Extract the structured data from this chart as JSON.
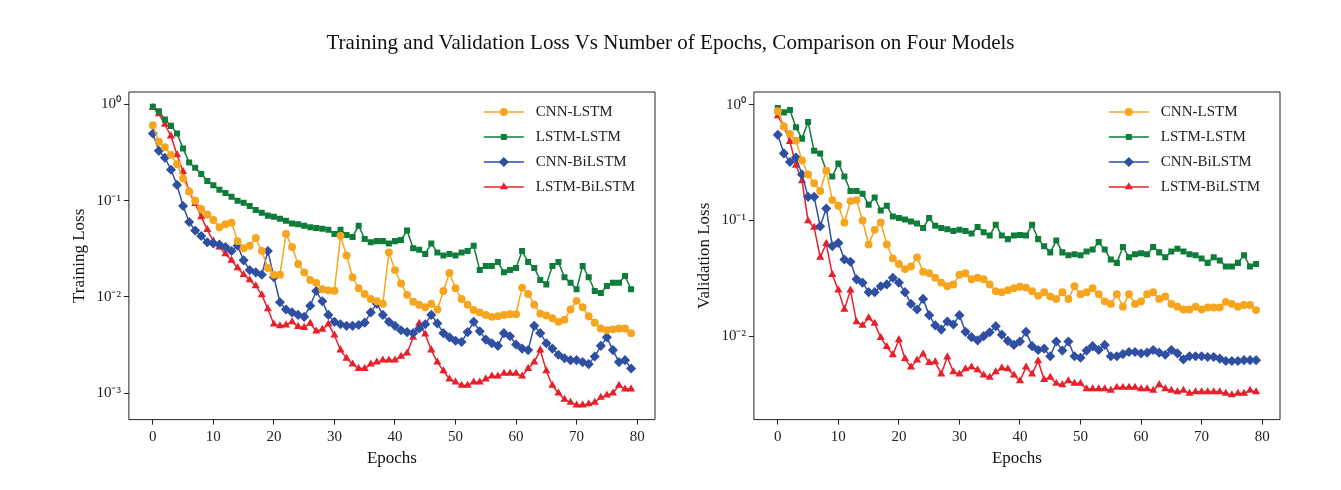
{
  "chart_data": [
    {
      "type": "line",
      "title": "Training and Validation Loss  Vs Number of Epochs, Comparison on Four Models",
      "xlabel": "Epochs",
      "ylabel": "Training Loss",
      "log": "y",
      "grid": false,
      "legend": "top right",
      "x": [
        0,
        1,
        2,
        3,
        4,
        5,
        6,
        7,
        8,
        9,
        10,
        11,
        12,
        13,
        14,
        15,
        16,
        17,
        18,
        19,
        20,
        21,
        22,
        23,
        24,
        25,
        26,
        27,
        28,
        29,
        30,
        31,
        32,
        33,
        34,
        35,
        36,
        37,
        38,
        39,
        40,
        41,
        42,
        43,
        44,
        45,
        46,
        47,
        48,
        49,
        50,
        51,
        52,
        53,
        54,
        55,
        56,
        57,
        58,
        59,
        60,
        61,
        62,
        63,
        64,
        65,
        66,
        67,
        68,
        69,
        70,
        71,
        72,
        73,
        74,
        75,
        76,
        77,
        78,
        79
      ],
      "xlim": [
        -3.95,
        82.95
      ],
      "xticks": [
        0,
        10,
        20,
        30,
        40,
        50,
        60,
        70,
        80
      ],
      "ylim": [
        0.00053,
        1.35
      ],
      "yticks": [
        {
          "value": 0.001,
          "label": "10⁻³"
        },
        {
          "value": 0.01,
          "label": "10⁻²"
        },
        {
          "value": 0.1,
          "label": "10⁻¹"
        },
        {
          "value": 1,
          "label": "10⁰"
        }
      ],
      "series": [
        {
          "name": "CNN-LSTM",
          "color": "#f7a51e",
          "marker": "circle",
          "values": [
            0.61,
            0.41,
            0.36,
            0.3,
            0.24,
            0.17,
            0.125,
            0.1,
            0.082,
            0.072,
            0.063,
            0.053,
            0.057,
            0.059,
            0.038,
            0.032,
            0.034,
            0.041,
            0.03,
            0.02,
            0.017,
            0.017,
            0.045,
            0.033,
            0.022,
            0.018,
            0.015,
            0.014,
            0.012,
            0.0117,
            0.0116,
            0.043,
            0.027,
            0.016,
            0.0123,
            0.0107,
            0.0095,
            0.009,
            0.0085,
            0.029,
            0.019,
            0.0138,
            0.0105,
            0.0089,
            0.0083,
            0.0078,
            0.0085,
            0.0074,
            0.0115,
            0.0177,
            0.0123,
            0.0095,
            0.0083,
            0.0073,
            0.0069,
            0.0065,
            0.0062,
            0.0063,
            0.0065,
            0.0066,
            0.0066,
            0.0125,
            0.0107,
            0.0083,
            0.0067,
            0.0064,
            0.006,
            0.0055,
            0.0058,
            0.0074,
            0.0091,
            0.0078,
            0.0063,
            0.0054,
            0.0047,
            0.0045,
            0.0046,
            0.0047,
            0.0047,
            0.0042
          ]
        },
        {
          "name": "LSTM-LSTM",
          "color": "#0e7d3a",
          "marker": "square",
          "values": [
            0.95,
            0.85,
            0.7,
            0.6,
            0.5,
            0.35,
            0.25,
            0.22,
            0.19,
            0.16,
            0.145,
            0.13,
            0.12,
            0.11,
            0.1,
            0.095,
            0.088,
            0.08,
            0.075,
            0.07,
            0.068,
            0.065,
            0.062,
            0.058,
            0.057,
            0.055,
            0.053,
            0.052,
            0.051,
            0.05,
            0.045,
            0.05,
            0.044,
            0.042,
            0.055,
            0.04,
            0.037,
            0.038,
            0.038,
            0.036,
            0.038,
            0.039,
            0.049,
            0.032,
            0.031,
            0.028,
            0.036,
            0.029,
            0.027,
            0.028,
            0.027,
            0.029,
            0.03,
            0.034,
            0.019,
            0.021,
            0.021,
            0.023,
            0.018,
            0.019,
            0.02,
            0.03,
            0.023,
            0.02,
            0.015,
            0.0135,
            0.021,
            0.023,
            0.016,
            0.014,
            0.012,
            0.021,
            0.016,
            0.0115,
            0.011,
            0.013,
            0.014,
            0.014,
            0.0165,
            0.012
          ]
        },
        {
          "name": "CNN-BiLSTM",
          "color": "#2f4fa2",
          "marker": "diamond",
          "values": [
            0.5,
            0.33,
            0.28,
            0.21,
            0.146,
            0.088,
            0.06,
            0.049,
            0.043,
            0.037,
            0.036,
            0.035,
            0.033,
            0.03,
            0.034,
            0.024,
            0.019,
            0.018,
            0.017,
            0.03,
            0.016,
            0.0088,
            0.0074,
            0.0069,
            0.0065,
            0.0062,
            0.0081,
            0.0115,
            0.009,
            0.0065,
            0.0055,
            0.0052,
            0.005,
            0.005,
            0.0051,
            0.0054,
            0.0069,
            0.0085,
            0.0065,
            0.0055,
            0.005,
            0.0045,
            0.0043,
            0.0042,
            0.0047,
            0.0052,
            0.0065,
            0.0053,
            0.0042,
            0.0038,
            0.0035,
            0.0034,
            0.0043,
            0.0055,
            0.0044,
            0.0036,
            0.0033,
            0.0031,
            0.0042,
            0.0039,
            0.0032,
            0.0029,
            0.0028,
            0.005,
            0.0042,
            0.0033,
            0.0029,
            0.0025,
            0.0023,
            0.0022,
            0.0022,
            0.0021,
            0.002,
            0.0024,
            0.0031,
            0.0038,
            0.0028,
            0.0021,
            0.0022,
            0.0018
          ]
        },
        {
          "name": "LSTM-BiLSTM",
          "color": "#e8202a",
          "marker": "triangle",
          "values": [
            0.93,
            0.8,
            0.62,
            0.47,
            0.3,
            0.2,
            0.125,
            0.093,
            0.068,
            0.05,
            0.038,
            0.033,
            0.028,
            0.024,
            0.02,
            0.017,
            0.015,
            0.013,
            0.0105,
            0.0075,
            0.0052,
            0.005,
            0.0051,
            0.0055,
            0.0049,
            0.0048,
            0.0053,
            0.0044,
            0.0046,
            0.0052,
            0.004,
            0.0028,
            0.0023,
            0.002,
            0.0018,
            0.0018,
            0.002,
            0.0021,
            0.0022,
            0.0022,
            0.0022,
            0.0024,
            0.0026,
            0.0038,
            0.0053,
            0.0041,
            0.0028,
            0.0021,
            0.0017,
            0.0014,
            0.0013,
            0.0012,
            0.0012,
            0.0013,
            0.0013,
            0.0014,
            0.0015,
            0.0015,
            0.0016,
            0.0016,
            0.0016,
            0.0015,
            0.0018,
            0.0021,
            0.0028,
            0.0017,
            0.0012,
            0.001,
            0.00086,
            0.0008,
            0.00075,
            0.00075,
            0.00077,
            0.0008,
            0.0009,
            0.00095,
            0.001,
            0.0012,
            0.0011,
            0.0011
          ]
        }
      ]
    },
    {
      "type": "line",
      "xlabel": "Epochs",
      "ylabel": "Validation Loss",
      "log": "y",
      "grid": false,
      "legend": "top right",
      "x": [
        0,
        1,
        2,
        3,
        4,
        5,
        6,
        7,
        8,
        9,
        10,
        11,
        12,
        13,
        14,
        15,
        16,
        17,
        18,
        19,
        20,
        21,
        22,
        23,
        24,
        25,
        26,
        27,
        28,
        29,
        30,
        31,
        32,
        33,
        34,
        35,
        36,
        37,
        38,
        39,
        40,
        41,
        42,
        43,
        44,
        45,
        46,
        47,
        48,
        49,
        50,
        51,
        52,
        53,
        54,
        55,
        56,
        57,
        58,
        59,
        60,
        61,
        62,
        63,
        64,
        65,
        66,
        67,
        68,
        69,
        70,
        71,
        72,
        73,
        74,
        75,
        76,
        77,
        78,
        79
      ],
      "xlim": [
        -3.95,
        82.95
      ],
      "xticks": [
        0,
        10,
        20,
        30,
        40,
        50,
        60,
        70,
        80
      ],
      "ylim": [
        0.0019,
        1.29
      ],
      "yticks": [
        {
          "value": 0.01,
          "label": "10⁻²"
        },
        {
          "value": 0.1,
          "label": "10⁻¹"
        },
        {
          "value": 1,
          "label": "10⁰"
        }
      ],
      "series": [
        {
          "name": "CNN-LSTM",
          "color": "#f7a51e",
          "marker": "circle",
          "values": [
            0.88,
            0.65,
            0.56,
            0.49,
            0.33,
            0.25,
            0.21,
            0.18,
            0.27,
            0.15,
            0.134,
            0.096,
            0.147,
            0.15,
            0.1,
            0.062,
            0.083,
            0.096,
            0.062,
            0.047,
            0.042,
            0.038,
            0.04,
            0.048,
            0.036,
            0.035,
            0.032,
            0.029,
            0.027,
            0.028,
            0.034,
            0.035,
            0.031,
            0.032,
            0.031,
            0.028,
            0.0245,
            0.024,
            0.025,
            0.026,
            0.0267,
            0.0263,
            0.0245,
            0.0223,
            0.024,
            0.022,
            0.021,
            0.024,
            0.021,
            0.027,
            0.023,
            0.024,
            0.026,
            0.023,
            0.02,
            0.019,
            0.023,
            0.018,
            0.023,
            0.019,
            0.02,
            0.023,
            0.024,
            0.021,
            0.022,
            0.019,
            0.018,
            0.017,
            0.017,
            0.018,
            0.017,
            0.0177,
            0.0177,
            0.0177,
            0.0198,
            0.019,
            0.018,
            0.0186,
            0.0186,
            0.0168
          ]
        },
        {
          "name": "LSTM-LSTM",
          "color": "#0e7d3a",
          "marker": "square",
          "values": [
            0.94,
            0.86,
            0.9,
            0.64,
            0.51,
            0.71,
            0.4,
            0.38,
            0.27,
            0.24,
            0.31,
            0.24,
            0.18,
            0.18,
            0.17,
            0.137,
            0.158,
            0.122,
            0.134,
            0.108,
            0.105,
            0.102,
            0.098,
            0.094,
            0.086,
            0.105,
            0.09,
            0.086,
            0.084,
            0.081,
            0.083,
            0.081,
            0.077,
            0.088,
            0.079,
            0.074,
            0.092,
            0.074,
            0.069,
            0.074,
            0.075,
            0.074,
            0.092,
            0.069,
            0.06,
            0.053,
            0.067,
            0.053,
            0.05,
            0.051,
            0.05,
            0.054,
            0.056,
            0.065,
            0.056,
            0.046,
            0.043,
            0.059,
            0.048,
            0.051,
            0.052,
            0.051,
            0.059,
            0.053,
            0.048,
            0.054,
            0.057,
            0.054,
            0.051,
            0.05,
            0.047,
            0.043,
            0.048,
            0.045,
            0.04,
            0.04,
            0.043,
            0.05,
            0.04,
            0.042
          ]
        },
        {
          "name": "CNN-BiLSTM",
          "color": "#2f4fa2",
          "marker": "diamond",
          "values": [
            0.55,
            0.38,
            0.32,
            0.35,
            0.25,
            0.16,
            0.16,
            0.089,
            0.127,
            0.06,
            0.064,
            0.046,
            0.044,
            0.031,
            0.029,
            0.024,
            0.024,
            0.027,
            0.028,
            0.032,
            0.029,
            0.024,
            0.019,
            0.017,
            0.021,
            0.0152,
            0.0124,
            0.0114,
            0.0134,
            0.0126,
            0.0152,
            0.0109,
            0.0098,
            0.0092,
            0.01,
            0.0108,
            0.0122,
            0.0103,
            0.0091,
            0.0084,
            0.009,
            0.0109,
            0.0082,
            0.0076,
            0.0078,
            0.0067,
            0.009,
            0.0075,
            0.009,
            0.0067,
            0.0065,
            0.0075,
            0.0082,
            0.0076,
            0.0084,
            0.0067,
            0.0067,
            0.007,
            0.0073,
            0.0073,
            0.0071,
            0.0072,
            0.0076,
            0.0072,
            0.0069,
            0.0076,
            0.0071,
            0.0063,
            0.0067,
            0.0067,
            0.0067,
            0.0066,
            0.0066,
            0.0064,
            0.0061,
            0.0061,
            0.0061,
            0.0062,
            0.0062,
            0.0062
          ]
        },
        {
          "name": "LSTM-BiLSTM",
          "color": "#e8202a",
          "marker": "triangle",
          "values": [
            0.8,
            0.65,
            0.48,
            0.3,
            0.22,
            0.099,
            0.087,
            0.048,
            0.063,
            0.034,
            0.025,
            0.017,
            0.025,
            0.0133,
            0.0124,
            0.0144,
            0.0129,
            0.0097,
            0.0081,
            0.0069,
            0.0093,
            0.0064,
            0.0054,
            0.0062,
            0.007,
            0.0059,
            0.006,
            0.0047,
            0.0066,
            0.0049,
            0.0047,
            0.0052,
            0.0054,
            0.0051,
            0.0046,
            0.0044,
            0.0049,
            0.0053,
            0.0052,
            0.0046,
            0.0041,
            0.0054,
            0.0047,
            0.0061,
            0.0042,
            0.0044,
            0.0039,
            0.0038,
            0.0041,
            0.0039,
            0.0039,
            0.0035,
            0.0035,
            0.0035,
            0.0035,
            0.0034,
            0.0036,
            0.0036,
            0.0036,
            0.0036,
            0.0035,
            0.0035,
            0.0034,
            0.0038,
            0.0035,
            0.0034,
            0.0033,
            0.0034,
            0.0032,
            0.0033,
            0.0033,
            0.0033,
            0.0033,
            0.0033,
            0.0032,
            0.0031,
            0.0032,
            0.0032,
            0.0034,
            0.0033
          ]
        }
      ]
    }
  ]
}
